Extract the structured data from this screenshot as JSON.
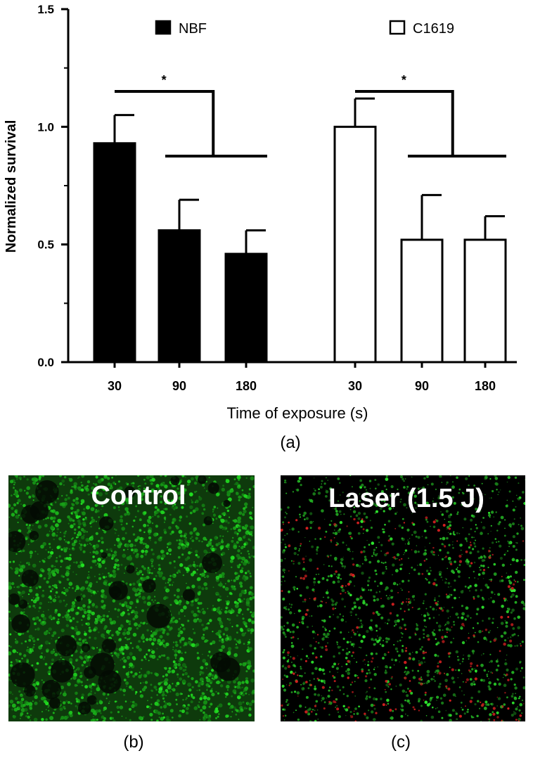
{
  "chart_data": {
    "type": "bar",
    "ylabel": "Normalized survival",
    "xlabel": "Time of exposure (s)",
    "yticks": [
      "0.0",
      "0.5",
      "1.0",
      "1.5"
    ],
    "ylim": [
      0,
      1.5
    ],
    "groups": [
      {
        "name": "NBF",
        "fill": "#000000",
        "categories": [
          "30",
          "90",
          "180"
        ],
        "values": [
          0.93,
          0.56,
          0.46
        ],
        "errors": [
          0.12,
          0.13,
          0.1
        ],
        "significance": "*"
      },
      {
        "name": "C1619",
        "fill": "#ffffff",
        "categories": [
          "30",
          "90",
          "180"
        ],
        "values": [
          1.0,
          0.52,
          0.52
        ],
        "errors": [
          0.12,
          0.19,
          0.1
        ],
        "significance": "*"
      }
    ],
    "legend_placement": "top",
    "grid": false
  },
  "labels": {
    "panel_a": "(a)",
    "panel_b": "(b)",
    "panel_c": "(c)"
  },
  "images": {
    "control_title": "Control",
    "laser_title": "Laser (1.5 J)"
  }
}
